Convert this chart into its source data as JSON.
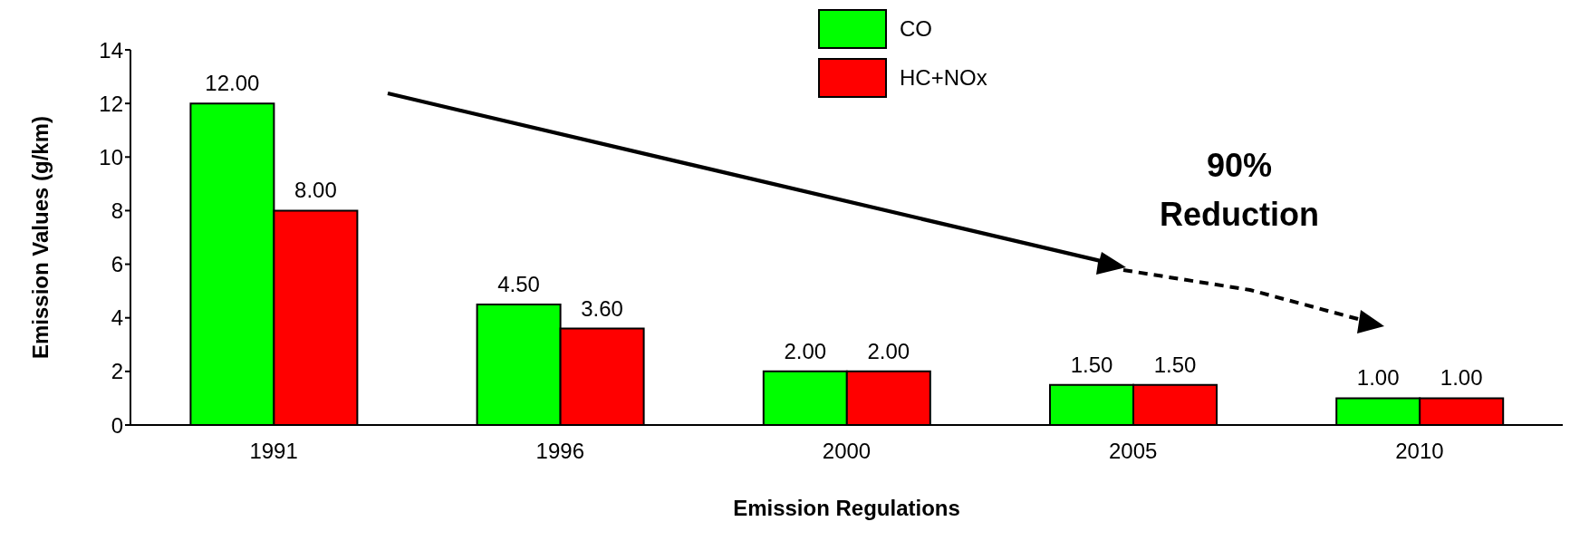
{
  "chart_data": {
    "type": "bar",
    "xlabel": "Emission Regulations",
    "ylabel": "Emission Values (g/km)",
    "categories": [
      "1991",
      "1996",
      "2000",
      "2005",
      "2010"
    ],
    "series": [
      {
        "name": "CO",
        "color": "#00ff00",
        "values": [
          12,
          4.5,
          2,
          1.5,
          1
        ],
        "value_labels": [
          "12.00",
          "4.50",
          "2.00",
          "1.50",
          "1.00"
        ]
      },
      {
        "name": "HC+NOx",
        "color": "#ff0000",
        "values": [
          8,
          3.6,
          2,
          1.5,
          1
        ],
        "value_labels": [
          "8.00",
          "3.60",
          "2.00",
          "1.50",
          "1.00"
        ]
      }
    ],
    "ylim": [
      0,
      14
    ],
    "yticks": [
      0,
      2,
      4,
      6,
      8,
      10,
      12,
      14
    ],
    "grid": false,
    "legend": "top",
    "annotations": [
      "90% Reduction"
    ]
  }
}
